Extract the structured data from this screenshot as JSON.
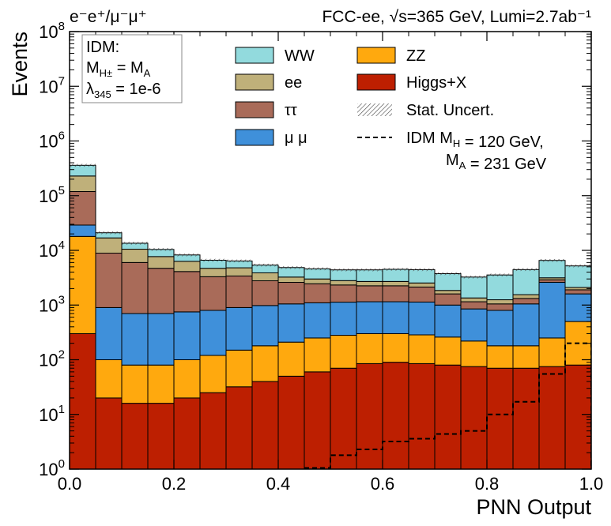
{
  "chart_data": {
    "type": "area",
    "histogram": "stacked-step",
    "title_left": "e⁻e⁺/μ⁻μ⁺",
    "title_right": "FCC-ee,  √s=365 GeV,  Lumi=2.7ab⁻¹",
    "xlabel": "PNN Output",
    "ylabel": "Events",
    "xlim": [
      0.0,
      1.0
    ],
    "ylim": [
      1,
      100000000
    ],
    "yscale": "log",
    "x_ticks": [
      "0.0",
      "0.2",
      "0.4",
      "0.6",
      "0.8",
      "1.0"
    ],
    "y_ticks": [
      {
        "base": "10",
        "exp": "0"
      },
      {
        "base": "10",
        "exp": "1"
      },
      {
        "base": "10",
        "exp": "2"
      },
      {
        "base": "10",
        "exp": "3"
      },
      {
        "base": "10",
        "exp": "4"
      },
      {
        "base": "10",
        "exp": "5"
      },
      {
        "base": "10",
        "exp": "6"
      },
      {
        "base": "10",
        "exp": "7"
      },
      {
        "base": "10",
        "exp": "8"
      }
    ],
    "bin_edges": [
      0.0,
      0.05,
      0.1,
      0.15,
      0.2,
      0.25,
      0.3,
      0.35,
      0.4,
      0.45,
      0.5,
      0.55,
      0.6,
      0.65,
      0.7,
      0.75,
      0.8,
      0.85,
      0.9,
      0.95,
      1.0
    ],
    "info_box": {
      "line1": "IDM:",
      "line2_main": "M",
      "line2_sub": "H±",
      "line2_rest": " = M",
      "line2_sub2": "A",
      "line3_main": "λ",
      "line3_sub": "345",
      "line3_rest": " = 1e-6"
    },
    "legend_position": "top-right",
    "legend": [
      {
        "label": "WW",
        "kind": "fill",
        "color": "#92dadd"
      },
      {
        "label": "ZZ",
        "kind": "fill",
        "color": "#ffa90e"
      },
      {
        "label": "ee",
        "kind": "fill",
        "color": "#bfb07a"
      },
      {
        "label": "Higgs+X",
        "kind": "fill",
        "color": "#bd1f01"
      },
      {
        "label": "ττ",
        "kind": "fill",
        "color": "#a96b59"
      },
      {
        "label": "Stat. Uncert.",
        "kind": "hatch",
        "color": "#444444"
      },
      {
        "label": "μ μ",
        "kind": "fill",
        "color": "#3f90da"
      },
      {
        "label": "IDM M_H = 120 GeV,",
        "label2": "M_A = 231 GeV",
        "kind": "dashed",
        "color": "#000000"
      }
    ],
    "series": [
      {
        "name": "Higgs+X",
        "color": "#bd1f01",
        "values": [
          300,
          20,
          16,
          16,
          20,
          25,
          32,
          40,
          50,
          60,
          70,
          85,
          90,
          85,
          80,
          75,
          70,
          70,
          75,
          80
        ]
      },
      {
        "name": "ZZ",
        "color": "#ffa90e",
        "values": [
          17700,
          80,
          64,
          64,
          80,
          95,
          118,
          140,
          160,
          190,
          210,
          215,
          210,
          200,
          180,
          145,
          110,
          110,
          175,
          420
        ]
      },
      {
        "name": "μ μ",
        "color": "#3f90da",
        "values": [
          11000,
          800,
          620,
          620,
          650,
          680,
          750,
          800,
          840,
          850,
          850,
          850,
          850,
          850,
          740,
          630,
          620,
          870,
          2350,
          1100
        ]
      },
      {
        "name": "ττ",
        "color": "#a96b59",
        "values": [
          90000,
          8000,
          5300,
          4000,
          3350,
          2500,
          2500,
          1800,
          1550,
          1350,
          1200,
          1100,
          1100,
          1000,
          600,
          300,
          250,
          270,
          300,
          300
        ]
      },
      {
        "name": "ee",
        "color": "#bfb07a",
        "values": [
          110000,
          8000,
          4500,
          3000,
          2200,
          1400,
          1400,
          1100,
          650,
          550,
          470,
          450,
          450,
          400,
          250,
          200,
          200,
          230,
          250,
          200
        ]
      },
      {
        "name": "WW",
        "color": "#92dadd",
        "values": [
          130000,
          4100,
          3000,
          2700,
          1950,
          1900,
          1600,
          1500,
          1600,
          1600,
          1600,
          1700,
          1800,
          1900,
          1900,
          1900,
          2300,
          2900,
          3400,
          3100
        ]
      }
    ],
    "signal": {
      "name": "IDM M_H = 120 GeV, M_A = 231 GeV",
      "values": [
        null,
        null,
        null,
        null,
        null,
        null,
        null,
        null,
        null,
        1.05,
        1.8,
        2.3,
        3.2,
        3.6,
        4.4,
        5.0,
        10.0,
        17.0,
        55.0,
        200.0
      ]
    }
  }
}
